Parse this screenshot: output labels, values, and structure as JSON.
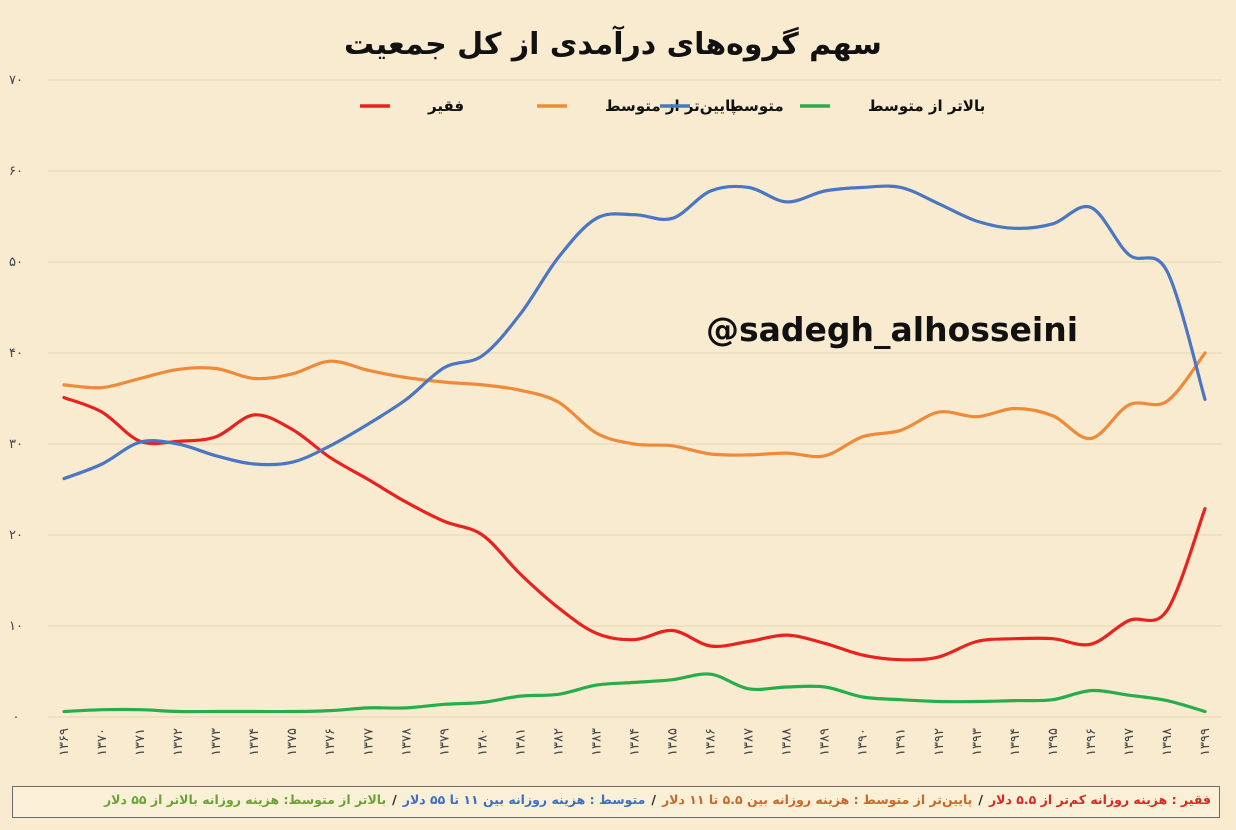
{
  "chart_data": {
    "type": "line",
    "title": "سهم گروه‌های درآمدی از کل جمعیت",
    "watermark": "@sadegh_alhosseini",
    "ylim": [
      0,
      70
    ],
    "yticks": [
      "۰",
      "۱۰",
      "۲۰",
      "۳۰",
      "۴۰",
      "۵۰",
      "۶۰",
      "۷۰"
    ],
    "grid": true,
    "legend_position": "top",
    "categories": [
      "۱۳۶۹",
      "۱۳۷۰",
      "۱۳۷۱",
      "۱۳۷۲",
      "۱۳۷۳",
      "۱۳۷۴",
      "۱۳۷۵",
      "۱۳۷۶",
      "۱۳۷۷",
      "۱۳۷۸",
      "۱۳۷۹",
      "۱۳۸۰",
      "۱۳۸۱",
      "۱۳۸۲",
      "۱۳۸۳",
      "۱۳۸۴",
      "۱۳۸۵",
      "۱۳۸۶",
      "۱۳۸۷",
      "۱۳۸۸",
      "۱۳۸۹",
      "۱۳۹۰",
      "۱۳۹۱",
      "۱۳۹۲",
      "۱۳۹۳",
      "۱۳۹۴",
      "۱۳۹۵",
      "۱۳۹۶",
      "۱۳۹۷",
      "۱۳۹۸",
      "۱۳۹۹"
    ],
    "series": [
      {
        "name": "فقیر",
        "color": "#e8231f",
        "values": [
          35.1,
          33.5,
          30.3,
          30.3,
          30.8,
          33.2,
          31.6,
          28.5,
          26.1,
          23.6,
          21.5,
          20.0,
          15.7,
          12.0,
          9.2,
          8.5,
          9.5,
          7.8,
          8.3,
          9.0,
          8.1,
          6.8,
          6.3,
          6.6,
          8.3,
          8.6,
          8.6,
          8.0,
          10.6,
          11.7,
          22.9
        ]
      },
      {
        "name": "پایین‌تر از متوسط",
        "color": "#ef8a3a",
        "values": [
          36.5,
          36.2,
          37.2,
          38.2,
          38.3,
          37.2,
          37.7,
          39.1,
          38.1,
          37.3,
          36.8,
          36.5,
          35.9,
          34.6,
          31.2,
          30.0,
          29.8,
          28.9,
          28.8,
          29.0,
          28.7,
          30.8,
          31.5,
          33.5,
          33.0,
          33.9,
          33.1,
          30.6,
          34.3,
          34.7,
          40.0
        ]
      },
      {
        "name": "متوسط",
        "color": "#4a76c3",
        "values": [
          26.2,
          27.8,
          30.2,
          30.0,
          28.7,
          27.8,
          28.0,
          29.8,
          32.2,
          34.9,
          38.4,
          39.7,
          44.3,
          50.5,
          54.8,
          55.2,
          54.8,
          57.8,
          58.2,
          56.6,
          57.8,
          58.2,
          58.2,
          56.4,
          54.5,
          53.7,
          54.2,
          56.0,
          50.8,
          49.0,
          34.9
        ]
      },
      {
        "name": "بالاتر از متوسط",
        "color": "#27ae4a",
        "values": [
          0.6,
          0.8,
          0.8,
          0.6,
          0.6,
          0.6,
          0.6,
          0.7,
          1.0,
          1.0,
          1.4,
          1.6,
          2.3,
          2.5,
          3.5,
          3.8,
          4.1,
          4.7,
          3.1,
          3.3,
          3.3,
          2.2,
          1.9,
          1.7,
          1.7,
          1.8,
          1.9,
          2.9,
          2.4,
          1.8,
          0.6
        ]
      }
    ]
  },
  "footnote": {
    "poor": "فقیر : هزینه روزانه کم‌تر از ۵.۵ دلار",
    "lower": "پایین‌تر از متوسط : هزینه روزانه بین ۵.۵ تا ۱۱ دلار",
    "middle": "متوسط : هزینه روزانه بین ۱۱ تا ۵۵ دلار",
    "upper": "بالاتر از متوسط: هزینه روزانه بالاتر از ۵۵ دلار",
    "separator": "/",
    "colors": {
      "poor": "#d8281f",
      "lower": "#c8692a",
      "middle": "#3f6fc1",
      "upper": "#6aa335"
    }
  }
}
